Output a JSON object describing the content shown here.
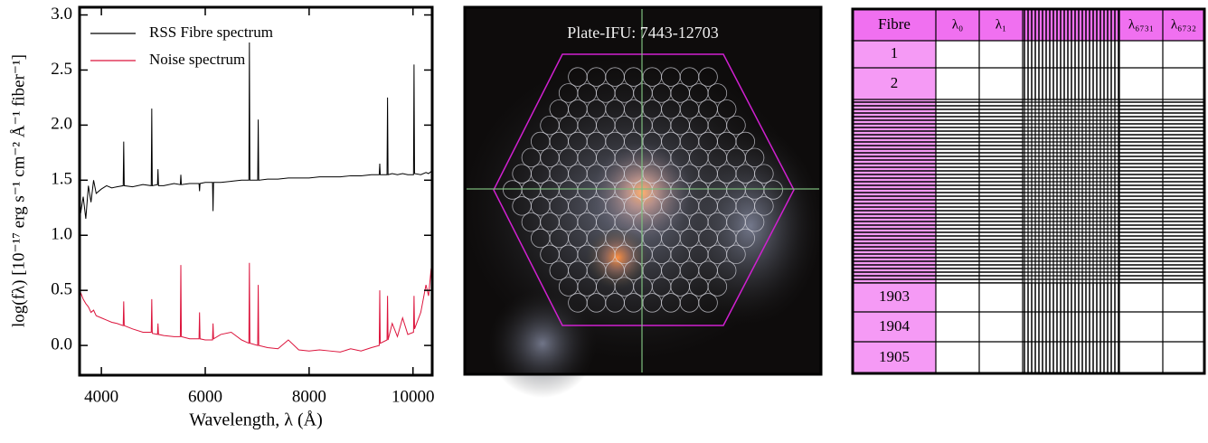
{
  "chart_data": {
    "type": "line",
    "xlabel": "Wavelength, λ (Å)",
    "ylabel": "log(fλ) [10⁻¹⁷ erg s⁻¹ cm⁻² Å⁻¹ fiber⁻¹]",
    "xlim": [
      3580,
      10370
    ],
    "ylim": [
      -0.27,
      3.07
    ],
    "xticks": [
      4000,
      6000,
      8000,
      10000
    ],
    "yticks": [
      {
        "value": 0,
        "label": "0.0"
      },
      0.5,
      {
        "value": 1,
        "label": "1.0"
      },
      1.5,
      {
        "value": 2,
        "label": "2.0"
      },
      2.5,
      {
        "value": 3,
        "label": "3.0"
      }
    ],
    "legend": "upper left",
    "x": [
      3600,
      3650,
      3700,
      3750,
      3800,
      3850,
      3900,
      4000,
      4100,
      4200,
      4300,
      4420,
      4430,
      4440,
      4600,
      4800,
      4960,
      4970,
      4980,
      5080,
      5090,
      5100,
      5200,
      5400,
      5520,
      5530,
      5540,
      5700,
      5880,
      5890,
      5900,
      6000,
      6140,
      6150,
      6160,
      6300,
      6500,
      6700,
      6840,
      6850,
      6860,
      7010,
      7020,
      7030,
      7200,
      7400,
      7600,
      7800,
      8000,
      8200,
      8400,
      8600,
      8800,
      9000,
      9200,
      9350,
      9360,
      9370,
      9500,
      9510,
      9520,
      9600,
      9700,
      9800,
      9900,
      10010,
      10020,
      10030,
      10150,
      10250,
      10300,
      10350
    ],
    "series": [
      {
        "name": "RSS Fibre spectrum",
        "color": "#000000",
        "values": [
          1.2,
          1.35,
          1.15,
          1.45,
          1.3,
          1.5,
          1.38,
          1.42,
          1.45,
          1.43,
          1.44,
          1.45,
          1.85,
          1.45,
          1.44,
          1.46,
          1.45,
          2.15,
          1.45,
          1.46,
          1.6,
          1.45,
          1.45,
          1.47,
          1.46,
          1.55,
          1.46,
          1.47,
          1.47,
          1.4,
          1.47,
          1.48,
          1.48,
          1.22,
          1.48,
          1.48,
          1.49,
          1.5,
          1.5,
          2.75,
          1.5,
          1.5,
          2.05,
          1.5,
          1.51,
          1.51,
          1.52,
          1.52,
          1.52,
          1.53,
          1.53,
          1.53,
          1.54,
          1.54,
          1.55,
          1.55,
          1.65,
          1.55,
          1.55,
          2.25,
          1.55,
          1.56,
          1.55,
          1.56,
          1.55,
          1.55,
          2.55,
          1.56,
          1.55,
          1.57,
          1.56,
          1.58
        ]
      },
      {
        "name": "Noise spectrum",
        "color": "#dc143c",
        "values": [
          0.48,
          0.42,
          0.38,
          0.35,
          0.3,
          0.32,
          0.27,
          0.25,
          0.23,
          0.21,
          0.2,
          0.18,
          0.4,
          0.18,
          0.15,
          0.12,
          0.12,
          0.42,
          0.11,
          0.1,
          0.2,
          0.1,
          0.09,
          0.08,
          0.08,
          0.73,
          0.08,
          0.06,
          0.06,
          0.3,
          0.06,
          0.05,
          0.05,
          0.2,
          0.06,
          0.1,
          0.12,
          0.05,
          0.02,
          0.75,
          0.02,
          0.0,
          0.55,
          0.0,
          -0.02,
          -0.03,
          0.05,
          -0.04,
          -0.05,
          -0.04,
          -0.05,
          -0.06,
          -0.03,
          -0.05,
          -0.02,
          0.0,
          0.5,
          0.02,
          0.05,
          0.45,
          0.05,
          0.2,
          0.08,
          0.25,
          0.1,
          0.12,
          0.45,
          0.15,
          0.3,
          0.55,
          0.45,
          0.7
        ]
      }
    ]
  },
  "image": {
    "label": "Plate-IFU: 7443-12703"
  },
  "table": {
    "header": [
      "Fibre",
      "λ₀",
      "λ₁",
      "λ₆₇₃₁",
      "λ₆₇₃₂"
    ],
    "rows": [
      "1",
      "2",
      "1903",
      "1904",
      "1905"
    ]
  }
}
